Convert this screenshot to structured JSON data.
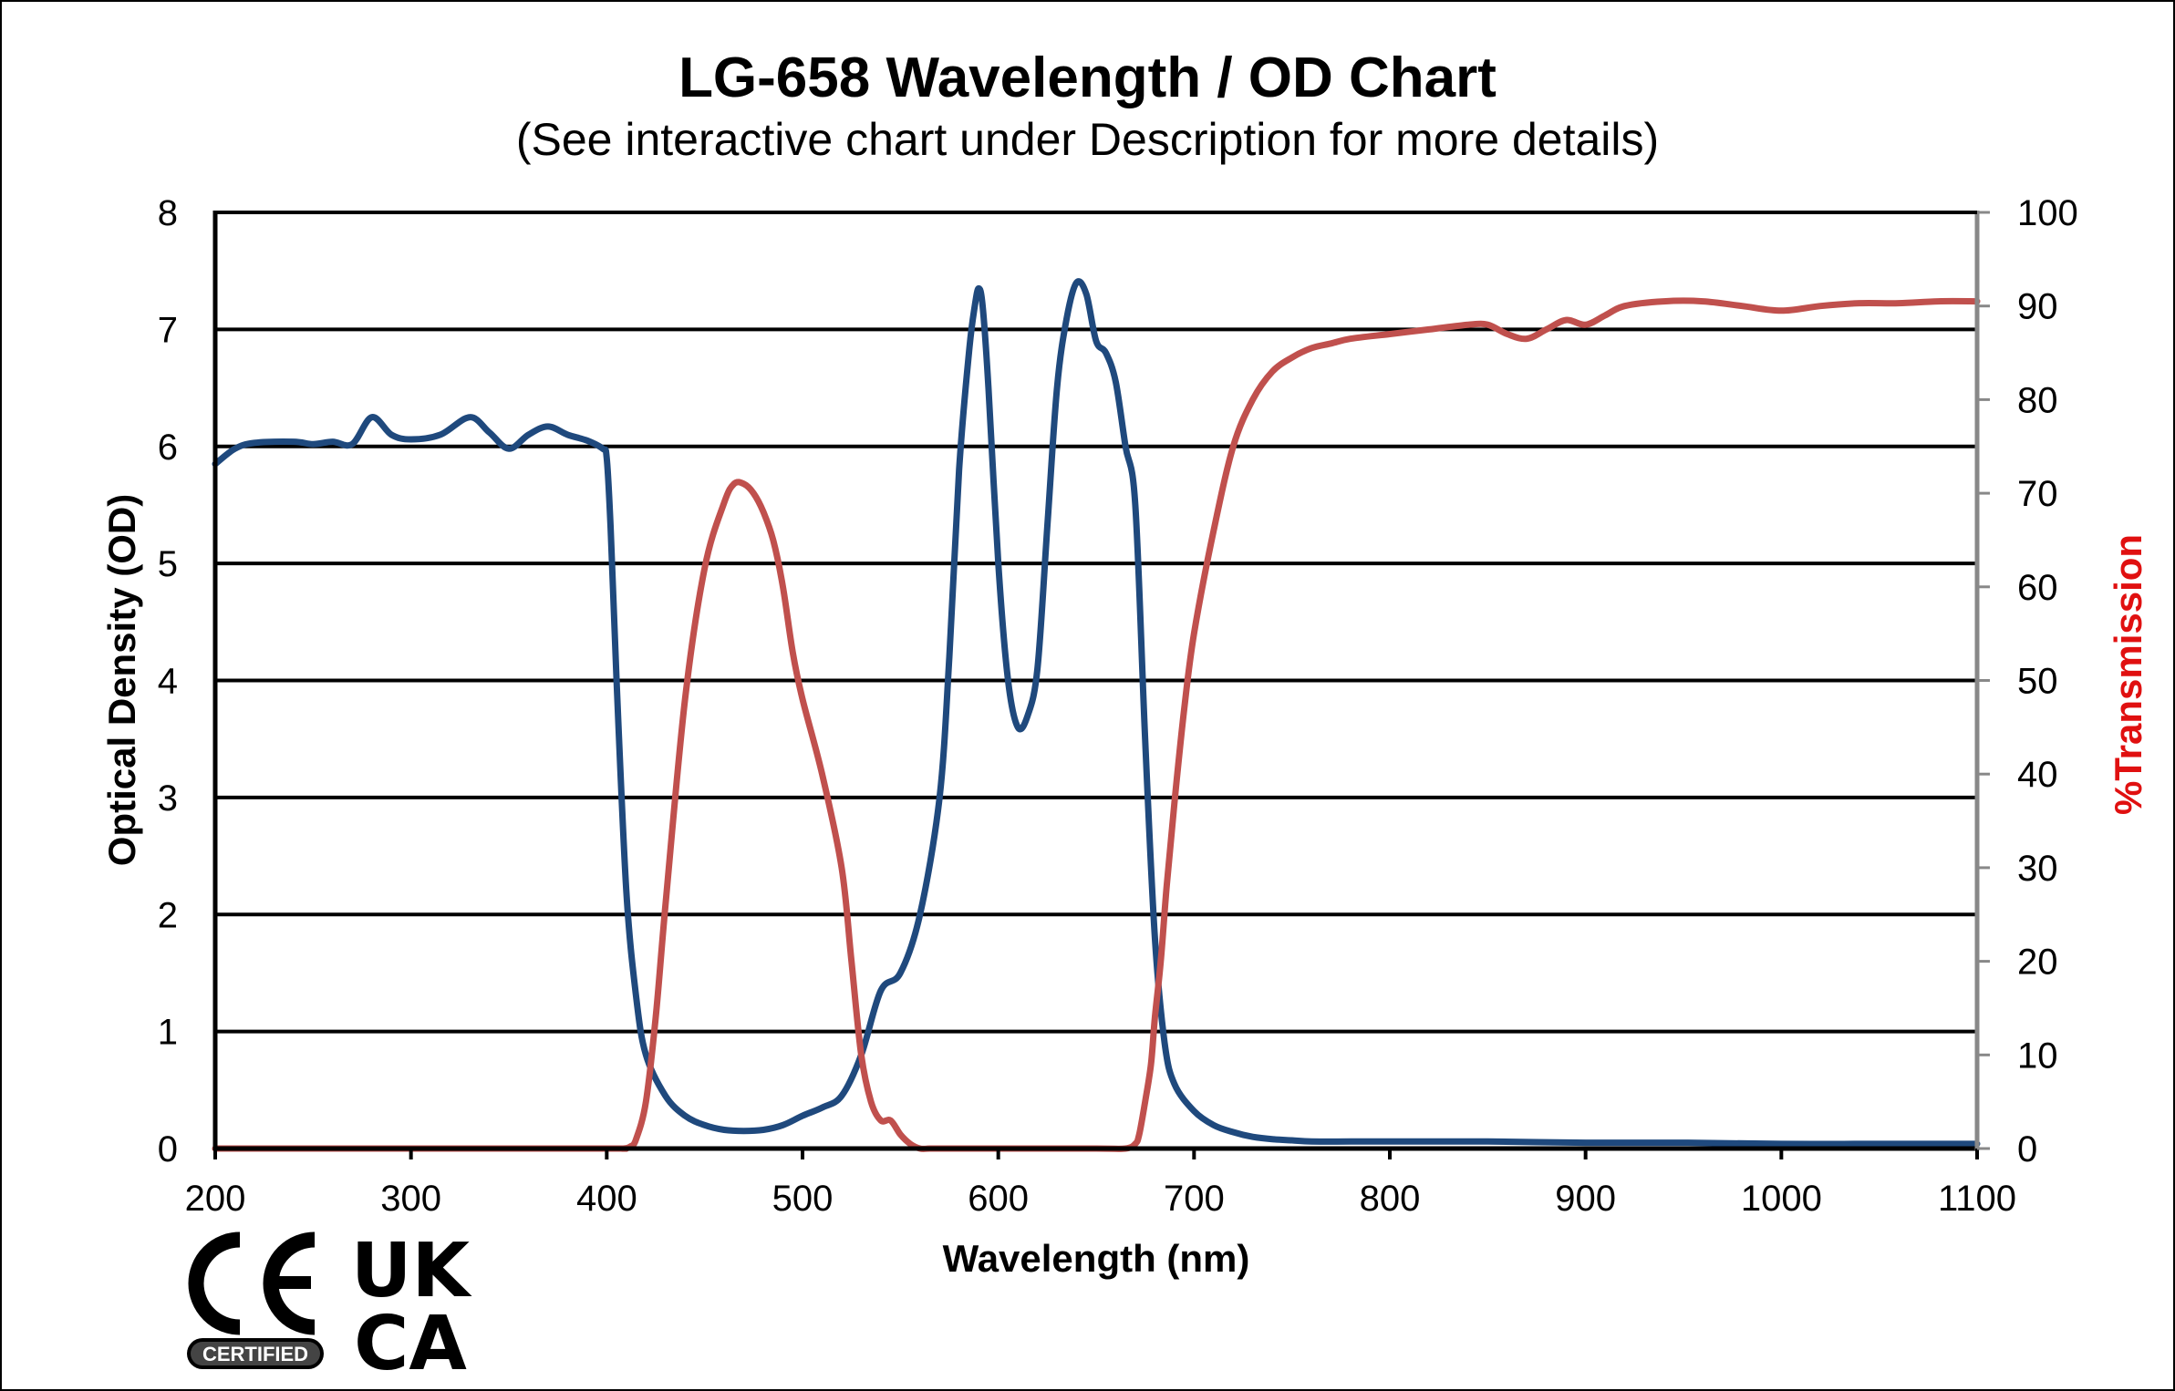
{
  "chart_data": {
    "type": "line",
    "title": "LG-658 Wavelength / OD Chart",
    "subtitle": "(See interactive chart under Description for more details)",
    "xlabel": "Wavelength (nm)",
    "ylabel": "Optical Density (OD)",
    "y2label": "%Transmission",
    "xlim": [
      200,
      1100
    ],
    "ylim": [
      0,
      8
    ],
    "y2lim": [
      0,
      100
    ],
    "xticks": [
      "200",
      "300",
      "400",
      "500",
      "600",
      "700",
      "800",
      "900",
      "1000",
      "1100"
    ],
    "yticks": [
      "0",
      "1",
      "2",
      "3",
      "4",
      "5",
      "6",
      "7",
      "8"
    ],
    "y2ticks": [
      "0",
      "10",
      "20",
      "30",
      "40",
      "50",
      "60",
      "70",
      "80",
      "90",
      "100"
    ],
    "grid": true,
    "series": [
      {
        "name": "Optical Density",
        "axis": "left",
        "color": "#1F497D",
        "x": [
          200,
          210,
          220,
          240,
          250,
          260,
          270,
          280,
          290,
          300,
          315,
          330,
          340,
          350,
          360,
          370,
          380,
          390,
          398,
          400,
          402,
          405,
          410,
          415,
          420,
          430,
          440,
          450,
          460,
          470,
          480,
          490,
          500,
          510,
          520,
          530,
          540,
          550,
          560,
          570,
          575,
          580,
          585,
          588,
          590,
          592,
          595,
          600,
          605,
          610,
          615,
          620,
          625,
          630,
          635,
          640,
          645,
          650,
          655,
          660,
          665,
          670,
          675,
          680,
          685,
          690,
          700,
          710,
          720,
          730,
          740,
          750,
          760,
          780,
          800,
          850,
          900,
          950,
          1000,
          1050,
          1100
        ],
        "y": [
          5.85,
          5.98,
          6.03,
          6.04,
          6.02,
          6.04,
          6.02,
          6.25,
          6.1,
          6.06,
          6.1,
          6.25,
          6.12,
          5.98,
          6.1,
          6.17,
          6.1,
          6.05,
          5.98,
          5.9,
          5.3,
          4.0,
          2.2,
          1.3,
          0.8,
          0.45,
          0.28,
          0.2,
          0.16,
          0.15,
          0.16,
          0.2,
          0.28,
          0.35,
          0.45,
          0.8,
          1.35,
          1.5,
          2.0,
          3.0,
          4.2,
          5.8,
          6.8,
          7.2,
          7.35,
          7.2,
          6.5,
          5.0,
          4.0,
          3.6,
          3.7,
          4.1,
          5.3,
          6.5,
          7.1,
          7.4,
          7.3,
          6.9,
          6.8,
          6.55,
          6.0,
          5.5,
          3.5,
          1.8,
          0.9,
          0.55,
          0.32,
          0.2,
          0.14,
          0.1,
          0.08,
          0.07,
          0.06,
          0.06,
          0.06,
          0.06,
          0.05,
          0.05,
          0.04,
          0.04,
          0.04
        ]
      },
      {
        "name": "%Transmission",
        "axis": "right",
        "color": "#C0504D",
        "x": [
          200,
          300,
          400,
          408,
          412,
          415,
          420,
          425,
          430,
          440,
          450,
          460,
          465,
          470,
          475,
          480,
          485,
          490,
          495,
          500,
          510,
          520,
          525,
          530,
          535,
          540,
          545,
          550,
          555,
          560,
          565,
          570,
          580,
          600,
          650,
          665,
          670,
          672,
          675,
          678,
          680,
          683,
          686,
          690,
          695,
          700,
          710,
          720,
          730,
          740,
          750,
          760,
          770,
          780,
          800,
          820,
          840,
          850,
          860,
          870,
          880,
          890,
          900,
          910,
          920,
          940,
          960,
          980,
          1000,
          1020,
          1040,
          1060,
          1080,
          1100
        ],
        "y": [
          0,
          0,
          0,
          0,
          0.2,
          1,
          5,
          14,
          26,
          48,
          62,
          69,
          71,
          71,
          70,
          68,
          65,
          60,
          53,
          48,
          40,
          30,
          20,
          10,
          5,
          3,
          3,
          1.5,
          0.5,
          0,
          0,
          0,
          0,
          0,
          0,
          0,
          0.5,
          1.5,
          5,
          9,
          14,
          20,
          28,
          37,
          47,
          55,
          66,
          75,
          80,
          83,
          84.5,
          85.5,
          86,
          86.5,
          87,
          87.5,
          88,
          88,
          87,
          86.5,
          87.5,
          88.5,
          88,
          89,
          90,
          90.5,
          90.5,
          90,
          89.5,
          90,
          90.3,
          90.3,
          90.5,
          90.5
        ]
      }
    ]
  },
  "logos": {
    "ce": "CE",
    "certified": "CERTIFIED",
    "ukca_line1": "UK",
    "ukca_line2": "CA"
  }
}
